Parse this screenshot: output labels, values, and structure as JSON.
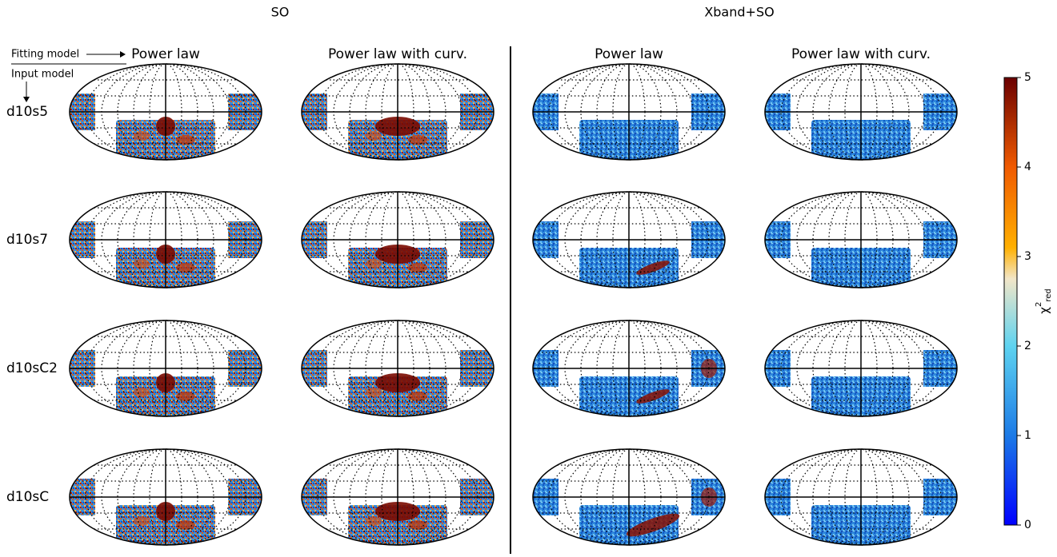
{
  "figure": {
    "groups": [
      "SO",
      "Xband+SO"
    ],
    "columns": [
      "Power law",
      "Power law with curv.",
      "Power law",
      "Power law with curv."
    ],
    "rows": [
      "d10s5",
      "d10s7",
      "d10sC2",
      "d10sC"
    ],
    "legend": {
      "fitting": "Fitting model",
      "input": "Input model"
    },
    "colorbar": {
      "symbol": "χ",
      "sup": "2",
      "sub": "red",
      "lim": [
        0,
        5
      ],
      "ticks": [
        0,
        1,
        2,
        3,
        4,
        5
      ]
    }
  }
}
